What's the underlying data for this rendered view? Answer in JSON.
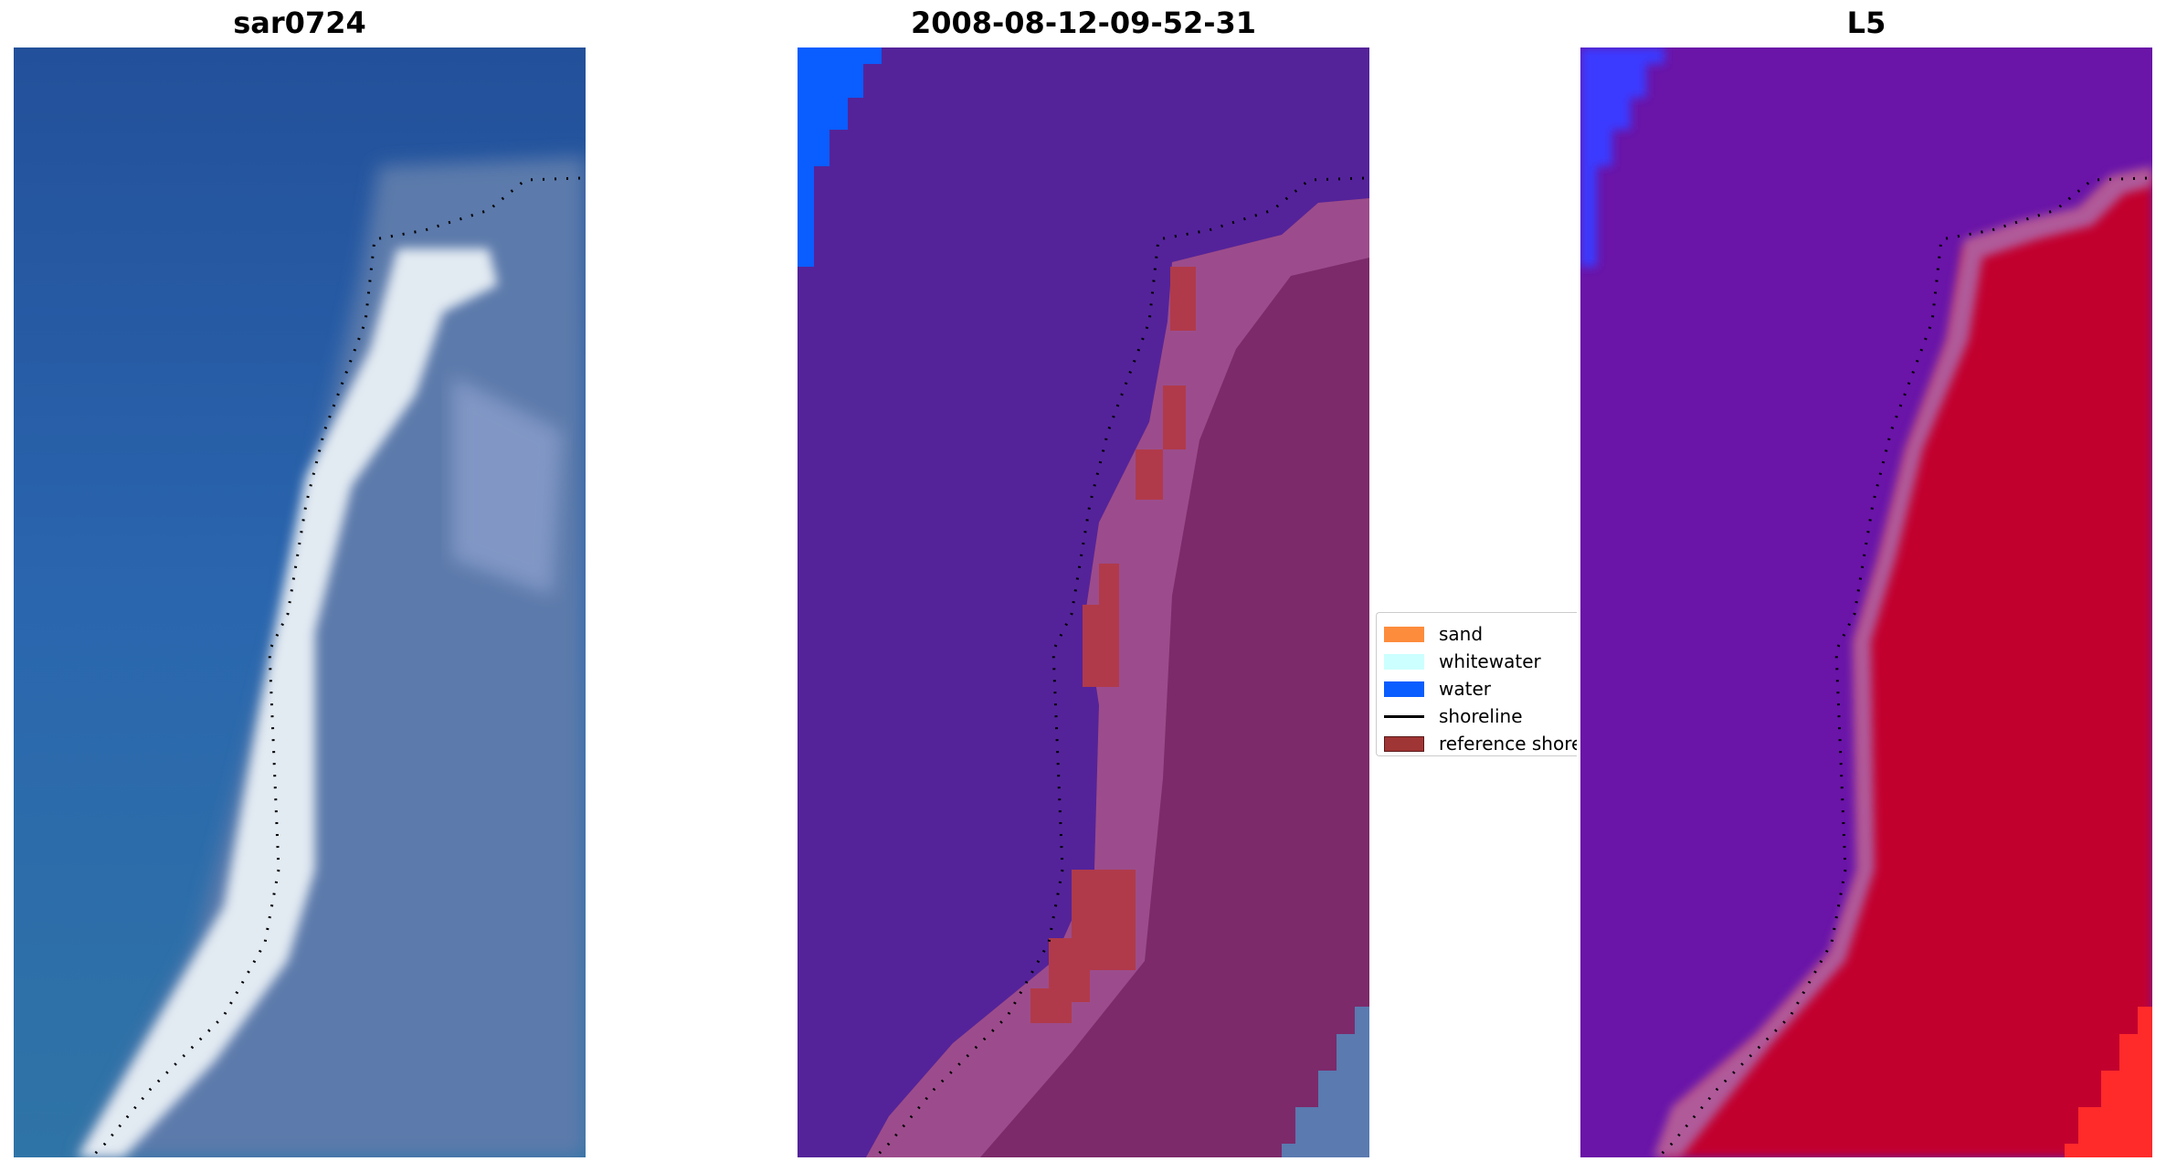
{
  "panels": [
    {
      "title": "sar0724"
    },
    {
      "title": "2008-08-12-09-52-31"
    },
    {
      "title": "L5"
    }
  ],
  "legend": {
    "items": [
      {
        "label": "sand",
        "color": "#fd8c3c",
        "kind": "patch"
      },
      {
        "label": "whitewater",
        "color": "#ccffff",
        "kind": "patch"
      },
      {
        "label": "water",
        "color": "#0a5dff",
        "kind": "patch"
      },
      {
        "label": "shoreline",
        "color": "#000000",
        "kind": "line"
      },
      {
        "label": "reference shoreline",
        "color": "#a03535",
        "kind": "patch"
      }
    ]
  },
  "colors": {
    "ocean_rgb": "#2a62a8",
    "beach_rgb": "#e0eaf0",
    "land_rgb": "#5878a8",
    "class_water": "#54239a",
    "class_land": "#7c2a6a",
    "class_beach": "#9c4c8c",
    "index_water": "#6a14a8",
    "index_land": "#c2062e",
    "index_band": "#b05a9a"
  }
}
